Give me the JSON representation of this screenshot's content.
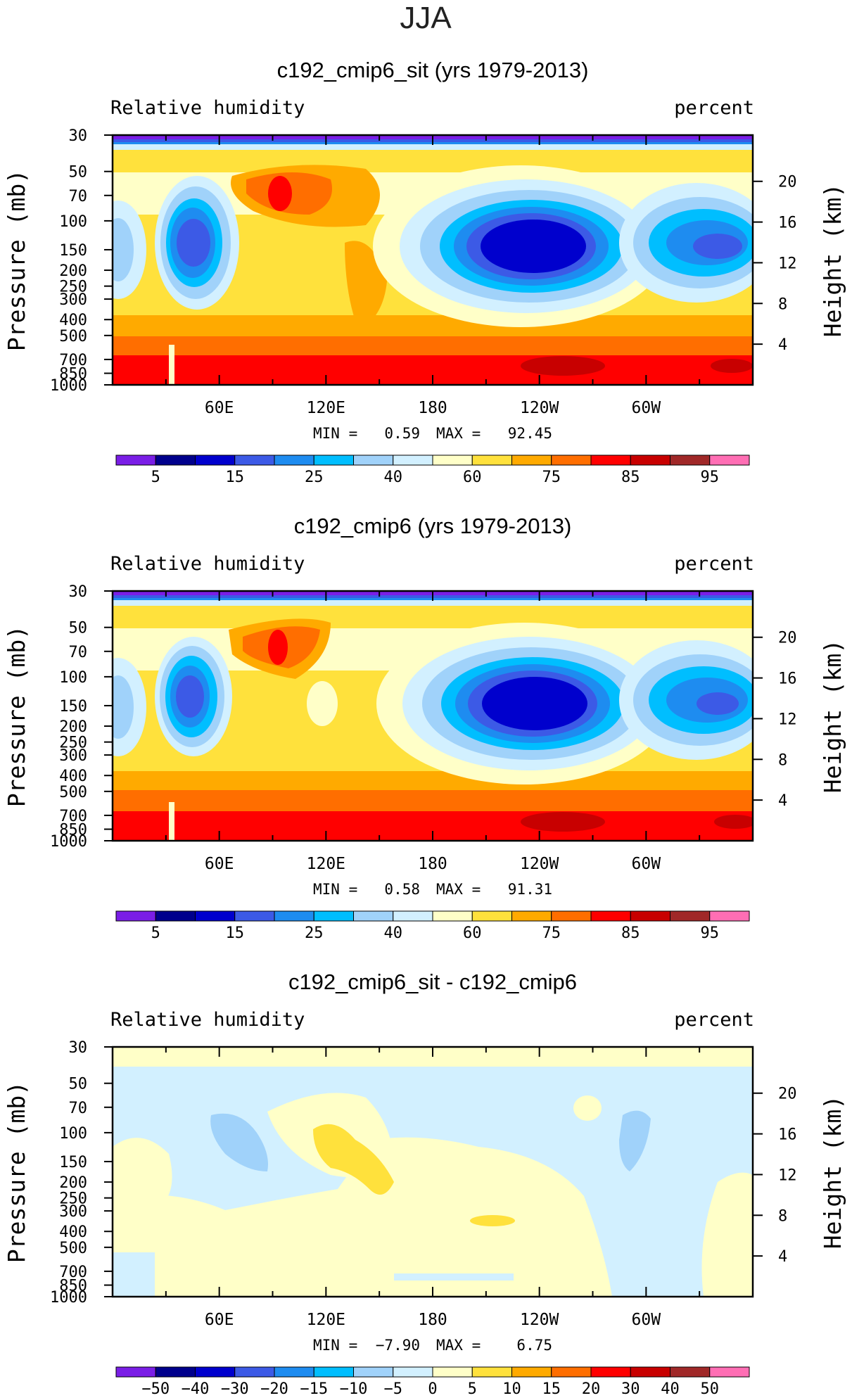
{
  "figure_title": "JJA",
  "chart_data": [
    {
      "type": "contour",
      "title": "c192_cmip6_sit (yrs 1979-2013)",
      "left_label": "Relative humidity",
      "right_label": "percent",
      "ylabel": "Pressure (mb)",
      "y2label": "Height (km)",
      "xticks": [
        "60E",
        "120E",
        "180",
        "120W",
        "60W"
      ],
      "yticks": [
        "30",
        "50",
        "70",
        "100",
        "150",
        "200",
        "250",
        "300",
        "400",
        "500",
        "700",
        "850",
        "1000"
      ],
      "y2ticks": [
        "20",
        "16",
        "12",
        "8",
        "4"
      ],
      "min_text": "MIN =",
      "min_value": "0.59",
      "max_text": "MAX =",
      "max_value": "92.45",
      "levels": [
        "5",
        "15",
        "25",
        "40",
        "60",
        "75",
        "85",
        "95"
      ],
      "colors": [
        "#7a1ee6",
        "#00008c",
        "#0000cd",
        "#3c5ae6",
        "#1e8cf0",
        "#00beff",
        "#a0d2fa",
        "#d2f0ff",
        "#ffffc8",
        "#ffe13c",
        "#ffaa00",
        "#ff6e00",
        "#ff0000",
        "#c80000",
        "#a02828",
        "#ff6eb4"
      ],
      "bands_unit": "level index 0-15",
      "features": [
        {
          "name": "band-surface-red",
          "level": 12
        },
        {
          "name": "band-lower-orange",
          "level": 10
        },
        {
          "name": "band-mid-yellow",
          "level": 9
        },
        {
          "name": "band-upper-yellow",
          "level": 9
        },
        {
          "name": "band-stratosphere",
          "level": 0
        },
        {
          "name": "blob-east-pacific-dry",
          "level": 1
        },
        {
          "name": "blob-indian-dry",
          "level": 3
        },
        {
          "name": "blob-atlantic-dry",
          "level": 4
        },
        {
          "name": "blob-maritime-moist",
          "level": 12
        }
      ]
    },
    {
      "type": "contour",
      "title": "c192_cmip6 (yrs 1979-2013)",
      "left_label": "Relative humidity",
      "right_label": "percent",
      "ylabel": "Pressure (mb)",
      "y2label": "Height (km)",
      "xticks": [
        "60E",
        "120E",
        "180",
        "120W",
        "60W"
      ],
      "yticks": [
        "30",
        "50",
        "70",
        "100",
        "150",
        "200",
        "250",
        "300",
        "400",
        "500",
        "700",
        "850",
        "1000"
      ],
      "y2ticks": [
        "20",
        "16",
        "12",
        "8",
        "4"
      ],
      "min_text": "MIN =",
      "min_value": "0.58",
      "max_text": "MAX =",
      "max_value": "91.31",
      "levels": [
        "5",
        "15",
        "25",
        "40",
        "60",
        "75",
        "85",
        "95"
      ],
      "colors": [
        "#7a1ee6",
        "#00008c",
        "#0000cd",
        "#3c5ae6",
        "#1e8cf0",
        "#00beff",
        "#a0d2fa",
        "#d2f0ff",
        "#ffffc8",
        "#ffe13c",
        "#ffaa00",
        "#ff6e00",
        "#ff0000",
        "#c80000",
        "#a02828",
        "#ff6eb4"
      ]
    },
    {
      "type": "contour",
      "title": "c192_cmip6_sit - c192_cmip6",
      "left_label": "Relative humidity",
      "right_label": "percent",
      "ylabel": "Pressure (mb)",
      "y2label": "Height (km)",
      "xticks": [
        "60E",
        "120E",
        "180",
        "120W",
        "60W"
      ],
      "yticks": [
        "30",
        "50",
        "70",
        "100",
        "150",
        "200",
        "250",
        "300",
        "400",
        "500",
        "700",
        "850",
        "1000"
      ],
      "y2ticks": [
        "20",
        "16",
        "12",
        "8",
        "4"
      ],
      "min_text": "MIN =",
      "min_value": "−7.90",
      "max_text": "MAX =",
      "max_value": "6.75",
      "levels": [
        "−50",
        "−40",
        "−30",
        "−20",
        "−15",
        "−10",
        "−5",
        "0",
        "5",
        "10",
        "15",
        "20",
        "30",
        "40",
        "50"
      ],
      "colors": [
        "#7a1ee6",
        "#00008c",
        "#0000cd",
        "#3c5ae6",
        "#1e8cf0",
        "#00beff",
        "#a0d2fa",
        "#d2f0ff",
        "#ffffc8",
        "#ffe13c",
        "#ffaa00",
        "#ff6e00",
        "#ff0000",
        "#c80000",
        "#a02828",
        "#ff6eb4"
      ]
    }
  ]
}
